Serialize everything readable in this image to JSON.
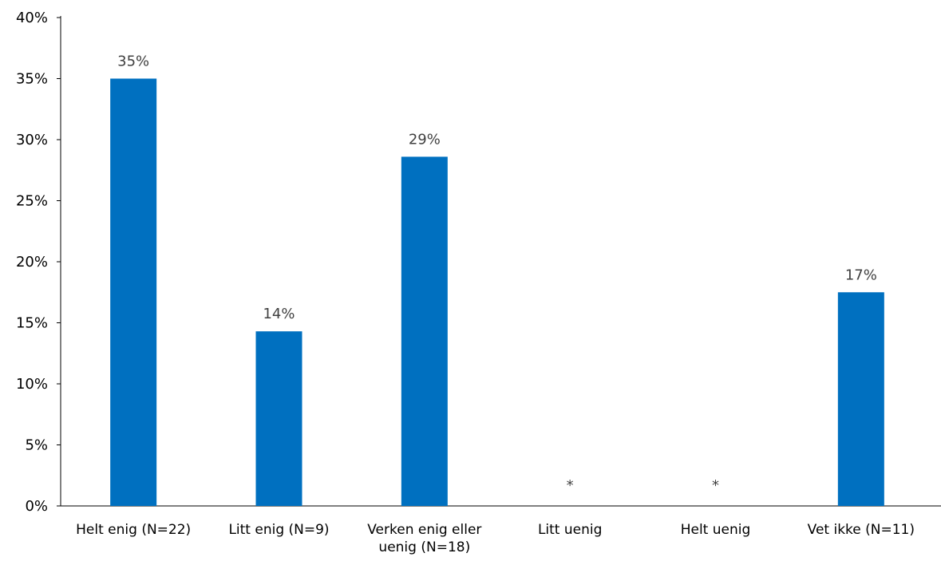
{
  "chart_data": {
    "type": "bar",
    "title": "",
    "xlabel": "",
    "ylabel": "",
    "ylim": [
      0,
      40
    ],
    "y_ticks": [
      "0%",
      "5%",
      "10%",
      "15%",
      "20%",
      "25%",
      "30%",
      "35%",
      "40%"
    ],
    "y_tick_values": [
      0,
      5,
      10,
      15,
      20,
      25,
      30,
      35,
      40
    ],
    "grid": false,
    "legend": "none",
    "bar_color": "#0070C0",
    "categories": [
      [
        "Helt enig (N=22)"
      ],
      [
        "Litt enig (N=9)"
      ],
      [
        "Verken enig eller",
        "uenig (N=18)"
      ],
      [
        "Litt uenig"
      ],
      [
        "Helt uenig"
      ],
      [
        "Vet ikke (N=11)"
      ]
    ],
    "values": [
      35,
      14.3,
      28.6,
      null,
      null,
      17.5
    ],
    "data_labels": [
      "35%",
      "14%",
      "29%",
      "*",
      "*",
      "17%"
    ]
  }
}
